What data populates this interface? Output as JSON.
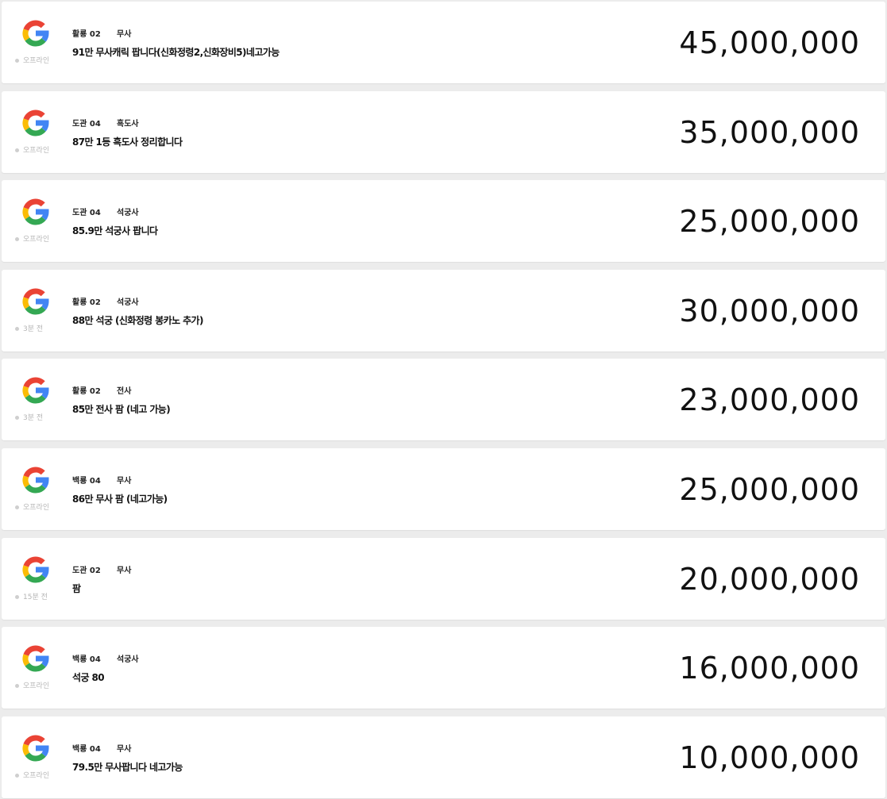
{
  "listings": [
    {
      "server": "활룡 02",
      "class": "무사",
      "title": "91만 무사캐릭 팝니다(신화정령2,신화장비5)네고가능",
      "status": "오프라인",
      "price": "45,000,000"
    },
    {
      "server": "도관 04",
      "class": "흑도사",
      "title": "87만 1등 흑도사 정리합니다",
      "status": "오프라인",
      "price": "35,000,000"
    },
    {
      "server": "도관 04",
      "class": "석궁사",
      "title": "85.9만 석궁사 팝니다",
      "status": "오프라인",
      "price": "25,000,000"
    },
    {
      "server": "활룡 02",
      "class": "석궁사",
      "title": "88만 석궁 (신화정령 봉카노 추가)",
      "status": "3분 전",
      "price": "30,000,000"
    },
    {
      "server": "활룡 02",
      "class": "전사",
      "title": "85만 전사 팜 (네고 가능)",
      "status": "3분 전",
      "price": "23,000,000"
    },
    {
      "server": "백룡 04",
      "class": "무사",
      "title": "86만 무사 팜 (네고가능)",
      "status": "오프라인",
      "price": "25,000,000"
    },
    {
      "server": "도관 02",
      "class": "무사",
      "title": "팜",
      "status": "15분 전",
      "price": "20,000,000"
    },
    {
      "server": "백룡 04",
      "class": "석궁사",
      "title": "석궁 80",
      "status": "오프라인",
      "price": "16,000,000"
    },
    {
      "server": "백룡 04",
      "class": "무사",
      "title": "79.5만 무사팝니다 네고가능",
      "status": "오프라인",
      "price": "10,000,000"
    }
  ]
}
